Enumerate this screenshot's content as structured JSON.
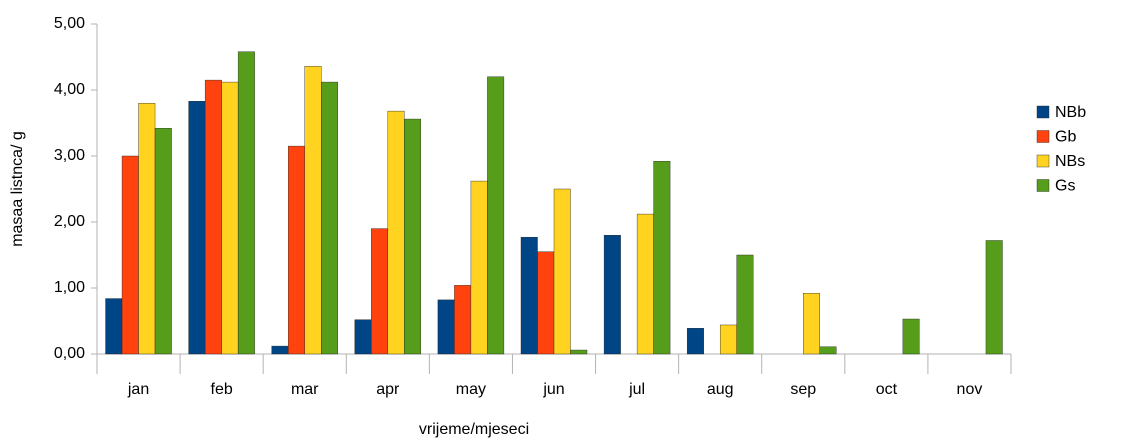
{
  "chart_data": {
    "type": "bar",
    "x_label": "vrijeme/mjeseci",
    "y_label": "masaa listnca/ g",
    "categories": [
      "jan",
      "feb",
      "mar",
      "apr",
      "may",
      "jun",
      "jul",
      "aug",
      "sep",
      "oct",
      "nov"
    ],
    "series": [
      {
        "name": "NBb",
        "color": "#004586",
        "values": [
          0.84,
          3.83,
          0.12,
          0.52,
          0.82,
          1.77,
          1.8,
          0.39,
          0,
          0,
          0
        ]
      },
      {
        "name": "Gb",
        "color": "#ff420e",
        "values": [
          3.0,
          4.15,
          3.15,
          1.9,
          1.04,
          1.55,
          0,
          0,
          0,
          0,
          0
        ]
      },
      {
        "name": "NBs",
        "color": "#ffd320",
        "values": [
          3.8,
          4.12,
          4.36,
          3.68,
          2.62,
          2.5,
          2.12,
          0.44,
          0.92,
          0,
          0
        ]
      },
      {
        "name": "Gs",
        "color": "#579d1c",
        "values": [
          3.42,
          4.58,
          4.12,
          3.56,
          4.2,
          0.06,
          2.92,
          1.5,
          0.11,
          0.53,
          1.72
        ]
      }
    ],
    "ylim": [
      0,
      5
    ],
    "yticks": [
      {
        "value": 0,
        "label": "0,00"
      },
      {
        "value": 1,
        "label": "1,00"
      },
      {
        "value": 2,
        "label": "2,00"
      },
      {
        "value": 3,
        "label": "3,00"
      },
      {
        "value": 4,
        "label": "4,00"
      },
      {
        "value": 5,
        "label": "5,00"
      }
    ],
    "legend": "right"
  }
}
